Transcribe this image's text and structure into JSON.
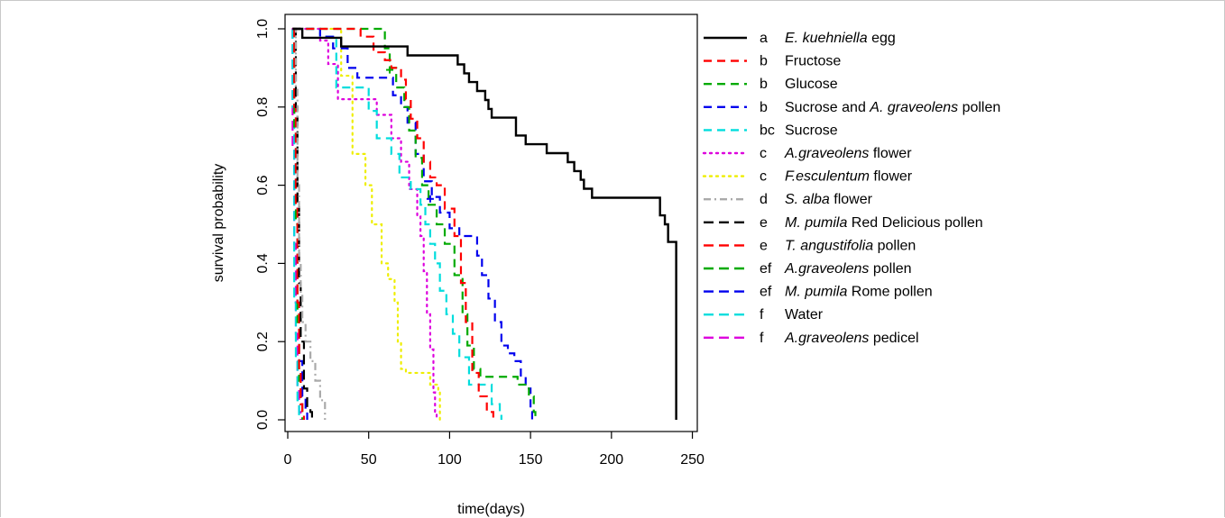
{
  "chart_data": {
    "type": "line",
    "xlabel": "time(days)",
    "ylabel": "survival probability",
    "xlim": [
      0,
      250
    ],
    "ylim": [
      0,
      1
    ],
    "xticks": [
      "0",
      "50",
      "100",
      "150",
      "200",
      "250"
    ],
    "yticks": [
      "0.0",
      "0.2",
      "0.4",
      "0.6",
      "0.8",
      "1.0"
    ],
    "grid": false,
    "legend_position": "right",
    "series": [
      {
        "group": "a",
        "name_parts": [
          {
            "t": "E. kuehniella",
            "i": true
          },
          {
            "t": " egg",
            "i": false
          }
        ],
        "color": "#000000",
        "dash": "solid",
        "points": [
          [
            3,
            1
          ],
          [
            9,
            0.977
          ],
          [
            33,
            0.977
          ],
          [
            33,
            0.955
          ],
          [
            74,
            0.955
          ],
          [
            74,
            0.932
          ],
          [
            97,
            0.932
          ],
          [
            105,
            0.909
          ],
          [
            109,
            0.886
          ],
          [
            112,
            0.864
          ],
          [
            117,
            0.841
          ],
          [
            122,
            0.818
          ],
          [
            124,
            0.795
          ],
          [
            126,
            0.773
          ],
          [
            137,
            0.773
          ],
          [
            141,
            0.727
          ],
          [
            147,
            0.705
          ],
          [
            155,
            0.705
          ],
          [
            160,
            0.682
          ],
          [
            168,
            0.682
          ],
          [
            173,
            0.659
          ],
          [
            177,
            0.636
          ],
          [
            181,
            0.614
          ],
          [
            183,
            0.591
          ],
          [
            188,
            0.568
          ],
          [
            227,
            0.568
          ],
          [
            230,
            0.523
          ],
          [
            233,
            0.5
          ],
          [
            235,
            0.455
          ],
          [
            240,
            0.455
          ],
          [
            240,
            0
          ]
        ]
      },
      {
        "group": "b",
        "name_parts": [
          {
            "t": "Fructose",
            "i": false
          }
        ],
        "color": "#ff0000",
        "dash": "dashed",
        "points": [
          [
            3,
            1
          ],
          [
            40,
            1
          ],
          [
            45,
            0.98
          ],
          [
            53,
            0.94
          ],
          [
            60,
            0.92
          ],
          [
            64,
            0.9
          ],
          [
            70,
            0.87
          ],
          [
            73,
            0.82
          ],
          [
            76,
            0.77
          ],
          [
            80,
            0.72
          ],
          [
            84,
            0.66
          ],
          [
            88,
            0.62
          ],
          [
            92,
            0.6
          ],
          [
            97,
            0.54
          ],
          [
            103,
            0.47
          ],
          [
            107,
            0.35
          ],
          [
            110,
            0.25
          ],
          [
            114,
            0.12
          ],
          [
            118,
            0.06
          ],
          [
            123,
            0.02
          ],
          [
            127,
            0
          ]
        ]
      },
      {
        "group": "b",
        "name_parts": [
          {
            "t": "Glucose",
            "i": false
          }
        ],
        "color": "#00aa00",
        "dash": "dashed",
        "points": [
          [
            3,
            1
          ],
          [
            55,
            1
          ],
          [
            60,
            0.95
          ],
          [
            63,
            0.9
          ],
          [
            67,
            0.85
          ],
          [
            72,
            0.8
          ],
          [
            75,
            0.74
          ],
          [
            79,
            0.67
          ],
          [
            83,
            0.6
          ],
          [
            87,
            0.55
          ],
          [
            92,
            0.5
          ],
          [
            97,
            0.45
          ],
          [
            103,
            0.37
          ],
          [
            108,
            0.27
          ],
          [
            111,
            0.19
          ],
          [
            115,
            0.13
          ],
          [
            119,
            0.11
          ],
          [
            137,
            0.11
          ],
          [
            142,
            0.09
          ],
          [
            149,
            0.06
          ],
          [
            152,
            0.02
          ],
          [
            153,
            0
          ]
        ]
      },
      {
        "group": "b",
        "name_parts": [
          {
            "t": "Sucrose and ",
            "i": false
          },
          {
            "t": "A. graveolens",
            "i": true
          },
          {
            "t": " pollen",
            "i": false
          }
        ],
        "color": "#0000ee",
        "dash": "dashed",
        "points": [
          [
            3,
            1
          ],
          [
            20,
            0.98
          ],
          [
            28,
            0.95
          ],
          [
            37,
            0.9
          ],
          [
            43,
            0.875
          ],
          [
            60,
            0.875
          ],
          [
            65,
            0.83
          ],
          [
            70,
            0.8
          ],
          [
            74,
            0.76
          ],
          [
            79,
            0.68
          ],
          [
            84,
            0.61
          ],
          [
            89,
            0.57
          ],
          [
            94,
            0.53
          ],
          [
            100,
            0.49
          ],
          [
            106,
            0.47
          ],
          [
            113,
            0.47
          ],
          [
            117,
            0.42
          ],
          [
            120,
            0.37
          ],
          [
            124,
            0.31
          ],
          [
            128,
            0.25
          ],
          [
            132,
            0.19
          ],
          [
            136,
            0.17
          ],
          [
            140,
            0.15
          ],
          [
            144,
            0.11
          ],
          [
            147,
            0.08
          ],
          [
            150,
            0.02
          ],
          [
            151,
            0
          ]
        ]
      },
      {
        "group": "bc",
        "name_parts": [
          {
            "t": "Sucrose",
            "i": false
          }
        ],
        "color": "#00dddd",
        "dash": "dashed",
        "points": [
          [
            3,
            1
          ],
          [
            12,
            1
          ],
          [
            20,
            0.98
          ],
          [
            30,
            0.85
          ],
          [
            45,
            0.85
          ],
          [
            50,
            0.79
          ],
          [
            55,
            0.72
          ],
          [
            64,
            0.68
          ],
          [
            69,
            0.62
          ],
          [
            76,
            0.59
          ],
          [
            82,
            0.55
          ],
          [
            85,
            0.5
          ],
          [
            88,
            0.45
          ],
          [
            91,
            0.4
          ],
          [
            94,
            0.33
          ],
          [
            98,
            0.27
          ],
          [
            102,
            0.22
          ],
          [
            106,
            0.16
          ],
          [
            112,
            0.09
          ],
          [
            122,
            0.09
          ],
          [
            126,
            0.04
          ],
          [
            131,
            0.02
          ],
          [
            132,
            0
          ]
        ]
      },
      {
        "group": "c",
        "name_parts": [
          {
            "t": "A.graveolens",
            "i": true
          },
          {
            "t": " flower",
            "i": false
          }
        ],
        "color": "#dd00dd",
        "dash": "dotted",
        "points": [
          [
            3,
            1
          ],
          [
            20,
            0.97
          ],
          [
            25,
            0.91
          ],
          [
            31,
            0.82
          ],
          [
            46,
            0.82
          ],
          [
            55,
            0.78
          ],
          [
            64,
            0.72
          ],
          [
            70,
            0.66
          ],
          [
            75,
            0.59
          ],
          [
            80,
            0.52
          ],
          [
            82,
            0.47
          ],
          [
            84,
            0.38
          ],
          [
            86,
            0.27
          ],
          [
            88,
            0.18
          ],
          [
            90,
            0.07
          ],
          [
            91,
            0.02
          ],
          [
            92,
            0
          ]
        ]
      },
      {
        "group": "c",
        "name_parts": [
          {
            "t": "F.esculentum",
            "i": true
          },
          {
            "t": " flower",
            "i": false
          }
        ],
        "color": "#eeee00",
        "dash": "dotted",
        "points": [
          [
            3,
            1
          ],
          [
            26,
            1
          ],
          [
            33,
            0.88
          ],
          [
            40,
            0.68
          ],
          [
            45,
            0.68
          ],
          [
            48,
            0.6
          ],
          [
            52,
            0.5
          ],
          [
            58,
            0.4
          ],
          [
            62,
            0.36
          ],
          [
            66,
            0.3
          ],
          [
            68,
            0.2
          ],
          [
            70,
            0.13
          ],
          [
            73,
            0.12
          ],
          [
            84,
            0.12
          ],
          [
            88,
            0.09
          ],
          [
            93,
            0.07
          ],
          [
            94,
            0
          ]
        ]
      },
      {
        "group": "d",
        "name_parts": [
          {
            "t": "S. alba",
            "i": true
          },
          {
            "t": " flower",
            "i": false
          }
        ],
        "color": "#aaaaaa",
        "dash": "dashdot",
        "points": [
          [
            3,
            1
          ],
          [
            5,
            0.85
          ],
          [
            6,
            0.6
          ],
          [
            7,
            0.4
          ],
          [
            8,
            0.32
          ],
          [
            9,
            0.25
          ],
          [
            11,
            0.2
          ],
          [
            14,
            0.15
          ],
          [
            17,
            0.1
          ],
          [
            20,
            0.05
          ],
          [
            23,
            0.02
          ],
          [
            23,
            0
          ]
        ]
      },
      {
        "group": "e",
        "name_parts": [
          {
            "t": "M. pumila",
            "i": true
          },
          {
            "t": " Red Delicious pollen",
            "i": false
          }
        ],
        "color": "#000000",
        "dash": "longdash",
        "points": [
          [
            3,
            1
          ],
          [
            5,
            0.8
          ],
          [
            6,
            0.55
          ],
          [
            7,
            0.35
          ],
          [
            8,
            0.2
          ],
          [
            10,
            0.08
          ],
          [
            12,
            0.03
          ],
          [
            14,
            0.02
          ],
          [
            15,
            0
          ]
        ]
      },
      {
        "group": "e",
        "name_parts": [
          {
            "t": "T. angustifolia",
            "i": true
          },
          {
            "t": " pollen",
            "i": false
          }
        ],
        "color": "#ff0000",
        "dash": "longdash",
        "points": [
          [
            3,
            1
          ],
          [
            4,
            0.8
          ],
          [
            5,
            0.55
          ],
          [
            6,
            0.3
          ],
          [
            7,
            0.12
          ],
          [
            8,
            0.04
          ],
          [
            9,
            0.02
          ],
          [
            10,
            0
          ]
        ]
      },
      {
        "group": "ef",
        "name_parts": [
          {
            "t": "A.graveolens",
            "i": true
          },
          {
            "t": " pollen",
            "i": false
          }
        ],
        "color": "#00aa00",
        "dash": "longdash",
        "points": [
          [
            3,
            1
          ],
          [
            4,
            0.75
          ],
          [
            5,
            0.5
          ],
          [
            6,
            0.25
          ],
          [
            7,
            0.1
          ],
          [
            8,
            0.04
          ],
          [
            9,
            0
          ]
        ]
      },
      {
        "group": "ef",
        "name_parts": [
          {
            "t": "M. pumila",
            "i": true
          },
          {
            "t": " Rome pollen",
            "i": false
          }
        ],
        "color": "#0000ee",
        "dash": "longdash",
        "points": [
          [
            3,
            1
          ],
          [
            4,
            0.8
          ],
          [
            5,
            0.55
          ],
          [
            6,
            0.3
          ],
          [
            7,
            0.15
          ],
          [
            9,
            0.06
          ],
          [
            11,
            0.02
          ],
          [
            12,
            0
          ]
        ]
      },
      {
        "group": "f",
        "name_parts": [
          {
            "t": "Water",
            "i": false
          }
        ],
        "color": "#00dddd",
        "dash": "longdash",
        "points": [
          [
            3,
            1
          ],
          [
            3,
            0.8
          ],
          [
            4,
            0.55
          ],
          [
            4,
            0.3
          ],
          [
            5,
            0.15
          ],
          [
            6,
            0.05
          ],
          [
            7,
            0
          ]
        ]
      },
      {
        "group": "f",
        "name_parts": [
          {
            "t": "A.graveolens",
            "i": true
          },
          {
            "t": " pedicel",
            "i": false
          }
        ],
        "color": "#dd00dd",
        "dash": "longdash",
        "points": [
          [
            3,
            1
          ],
          [
            3,
            0.7
          ],
          [
            4,
            0.45
          ],
          [
            5,
            0.22
          ],
          [
            6,
            0.08
          ],
          [
            7,
            0.02
          ],
          [
            8,
            0
          ]
        ]
      }
    ],
    "censor_marks": [
      {
        "x": 63,
        "y": 0.895,
        "color": "#00aa00"
      },
      {
        "x": 88,
        "y": 0.565,
        "color": "#0000ee"
      }
    ]
  }
}
